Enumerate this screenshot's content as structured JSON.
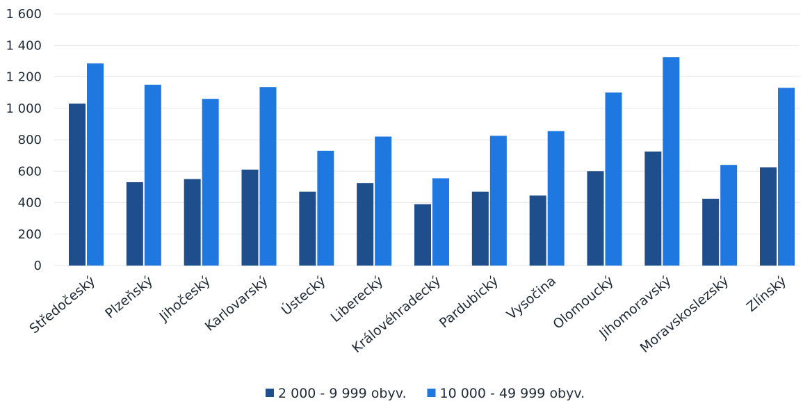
{
  "chart_data": {
    "type": "bar",
    "ylim": [
      0,
      1600
    ],
    "yticks": [
      "0",
      "200",
      "400",
      "600",
      "800",
      "1 000",
      "1 200",
      "1 400",
      "1 600"
    ],
    "grid": true,
    "legend_position": "bottom",
    "categories": [
      "Středočeský",
      "Plzeňský",
      "Jihočeský",
      "Karlovarský",
      "Ústecký",
      "Liberecký",
      "Královéhradecký",
      "Pardubický",
      "Vysočina",
      "Olomoucký",
      "Jihomoravský",
      "Moravskoslezský",
      "Zlínský"
    ],
    "series": [
      {
        "name": "2 000 - 9 999 obyv.",
        "color": "#1f4e8c",
        "values": [
          1030,
          530,
          550,
          610,
          470,
          525,
          390,
          470,
          445,
          600,
          725,
          425,
          625
        ]
      },
      {
        "name": "10 000 - 49 999 obyv.",
        "color": "#1e78e0",
        "values": [
          1285,
          1150,
          1060,
          1135,
          730,
          820,
          555,
          825,
          855,
          1100,
          1325,
          640,
          1130
        ]
      }
    ]
  }
}
